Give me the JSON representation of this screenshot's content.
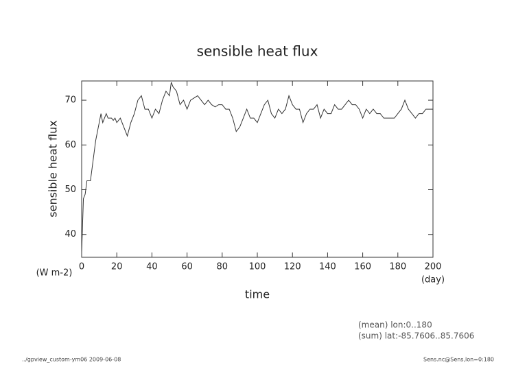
{
  "chart_data": {
    "type": "line",
    "title": "sensible heat flux",
    "y_label": "sensible heat flux",
    "y_unit": "(W m-2)",
    "x_label": "time",
    "x_unit": "(day)",
    "annotations": [
      "(mean) lon:0..180",
      "(sum) lat:-85.7606..85.7606"
    ],
    "footer_left": "../gpview_custom-ym06  2009-06-08",
    "footer_right": "Sens.nc@Sens,lon=0:180",
    "xlim": [
      0,
      200
    ],
    "xticks": [
      0,
      20,
      40,
      60,
      80,
      100,
      120,
      140,
      160,
      180,
      200
    ],
    "ylim": [
      34.9,
      74.3
    ],
    "yticks": [
      40,
      50,
      60,
      70
    ],
    "series": [
      {
        "color": "#333333",
        "x": [
          0,
          1,
          2,
          3,
          4,
          5,
          6,
          7,
          8,
          9,
          10,
          11,
          12,
          13,
          14,
          15,
          16,
          17,
          18,
          19,
          20,
          22,
          24,
          26,
          28,
          30,
          32,
          34,
          36,
          38,
          40,
          42,
          44,
          46,
          48,
          50,
          51,
          52,
          54,
          56,
          58,
          60,
          62,
          64,
          66,
          68,
          70,
          72,
          74,
          76,
          78,
          80,
          82,
          84,
          86,
          88,
          90,
          92,
          94,
          96,
          98,
          100,
          102,
          104,
          106,
          108,
          110,
          112,
          114,
          116,
          118,
          120,
          122,
          124,
          126,
          128,
          130,
          132,
          134,
          136,
          138,
          140,
          142,
          144,
          146,
          148,
          150,
          152,
          154,
          156,
          158,
          160,
          162,
          164,
          166,
          168,
          170,
          172,
          174,
          176,
          178,
          180,
          182,
          184,
          186,
          188,
          190,
          192,
          194,
          196,
          198,
          200
        ],
        "values": [
          36,
          48,
          49,
          52,
          52,
          52,
          55,
          58,
          61,
          63,
          65,
          67,
          65,
          66,
          67,
          66,
          66,
          66,
          65.5,
          66,
          65,
          66,
          64,
          62,
          65,
          67,
          70,
          71,
          68,
          68,
          66,
          68,
          67,
          70,
          72,
          71,
          74,
          73,
          72,
          69,
          70,
          68,
          70,
          70.5,
          71,
          70,
          69,
          70,
          69,
          68.5,
          69,
          69,
          68,
          68,
          66,
          63,
          64,
          66,
          68,
          66,
          66,
          65,
          67,
          69,
          70,
          67,
          66,
          68,
          67,
          68,
          71,
          69,
          68,
          68,
          65,
          67,
          68,
          68,
          69,
          66,
          68,
          67,
          67,
          69,
          68,
          68,
          69,
          70,
          69,
          69,
          68,
          66,
          68,
          67,
          68,
          67,
          67,
          66,
          66,
          66,
          66,
          67,
          68,
          70,
          68,
          67,
          66,
          67,
          67,
          68,
          68,
          68
        ]
      }
    ]
  }
}
